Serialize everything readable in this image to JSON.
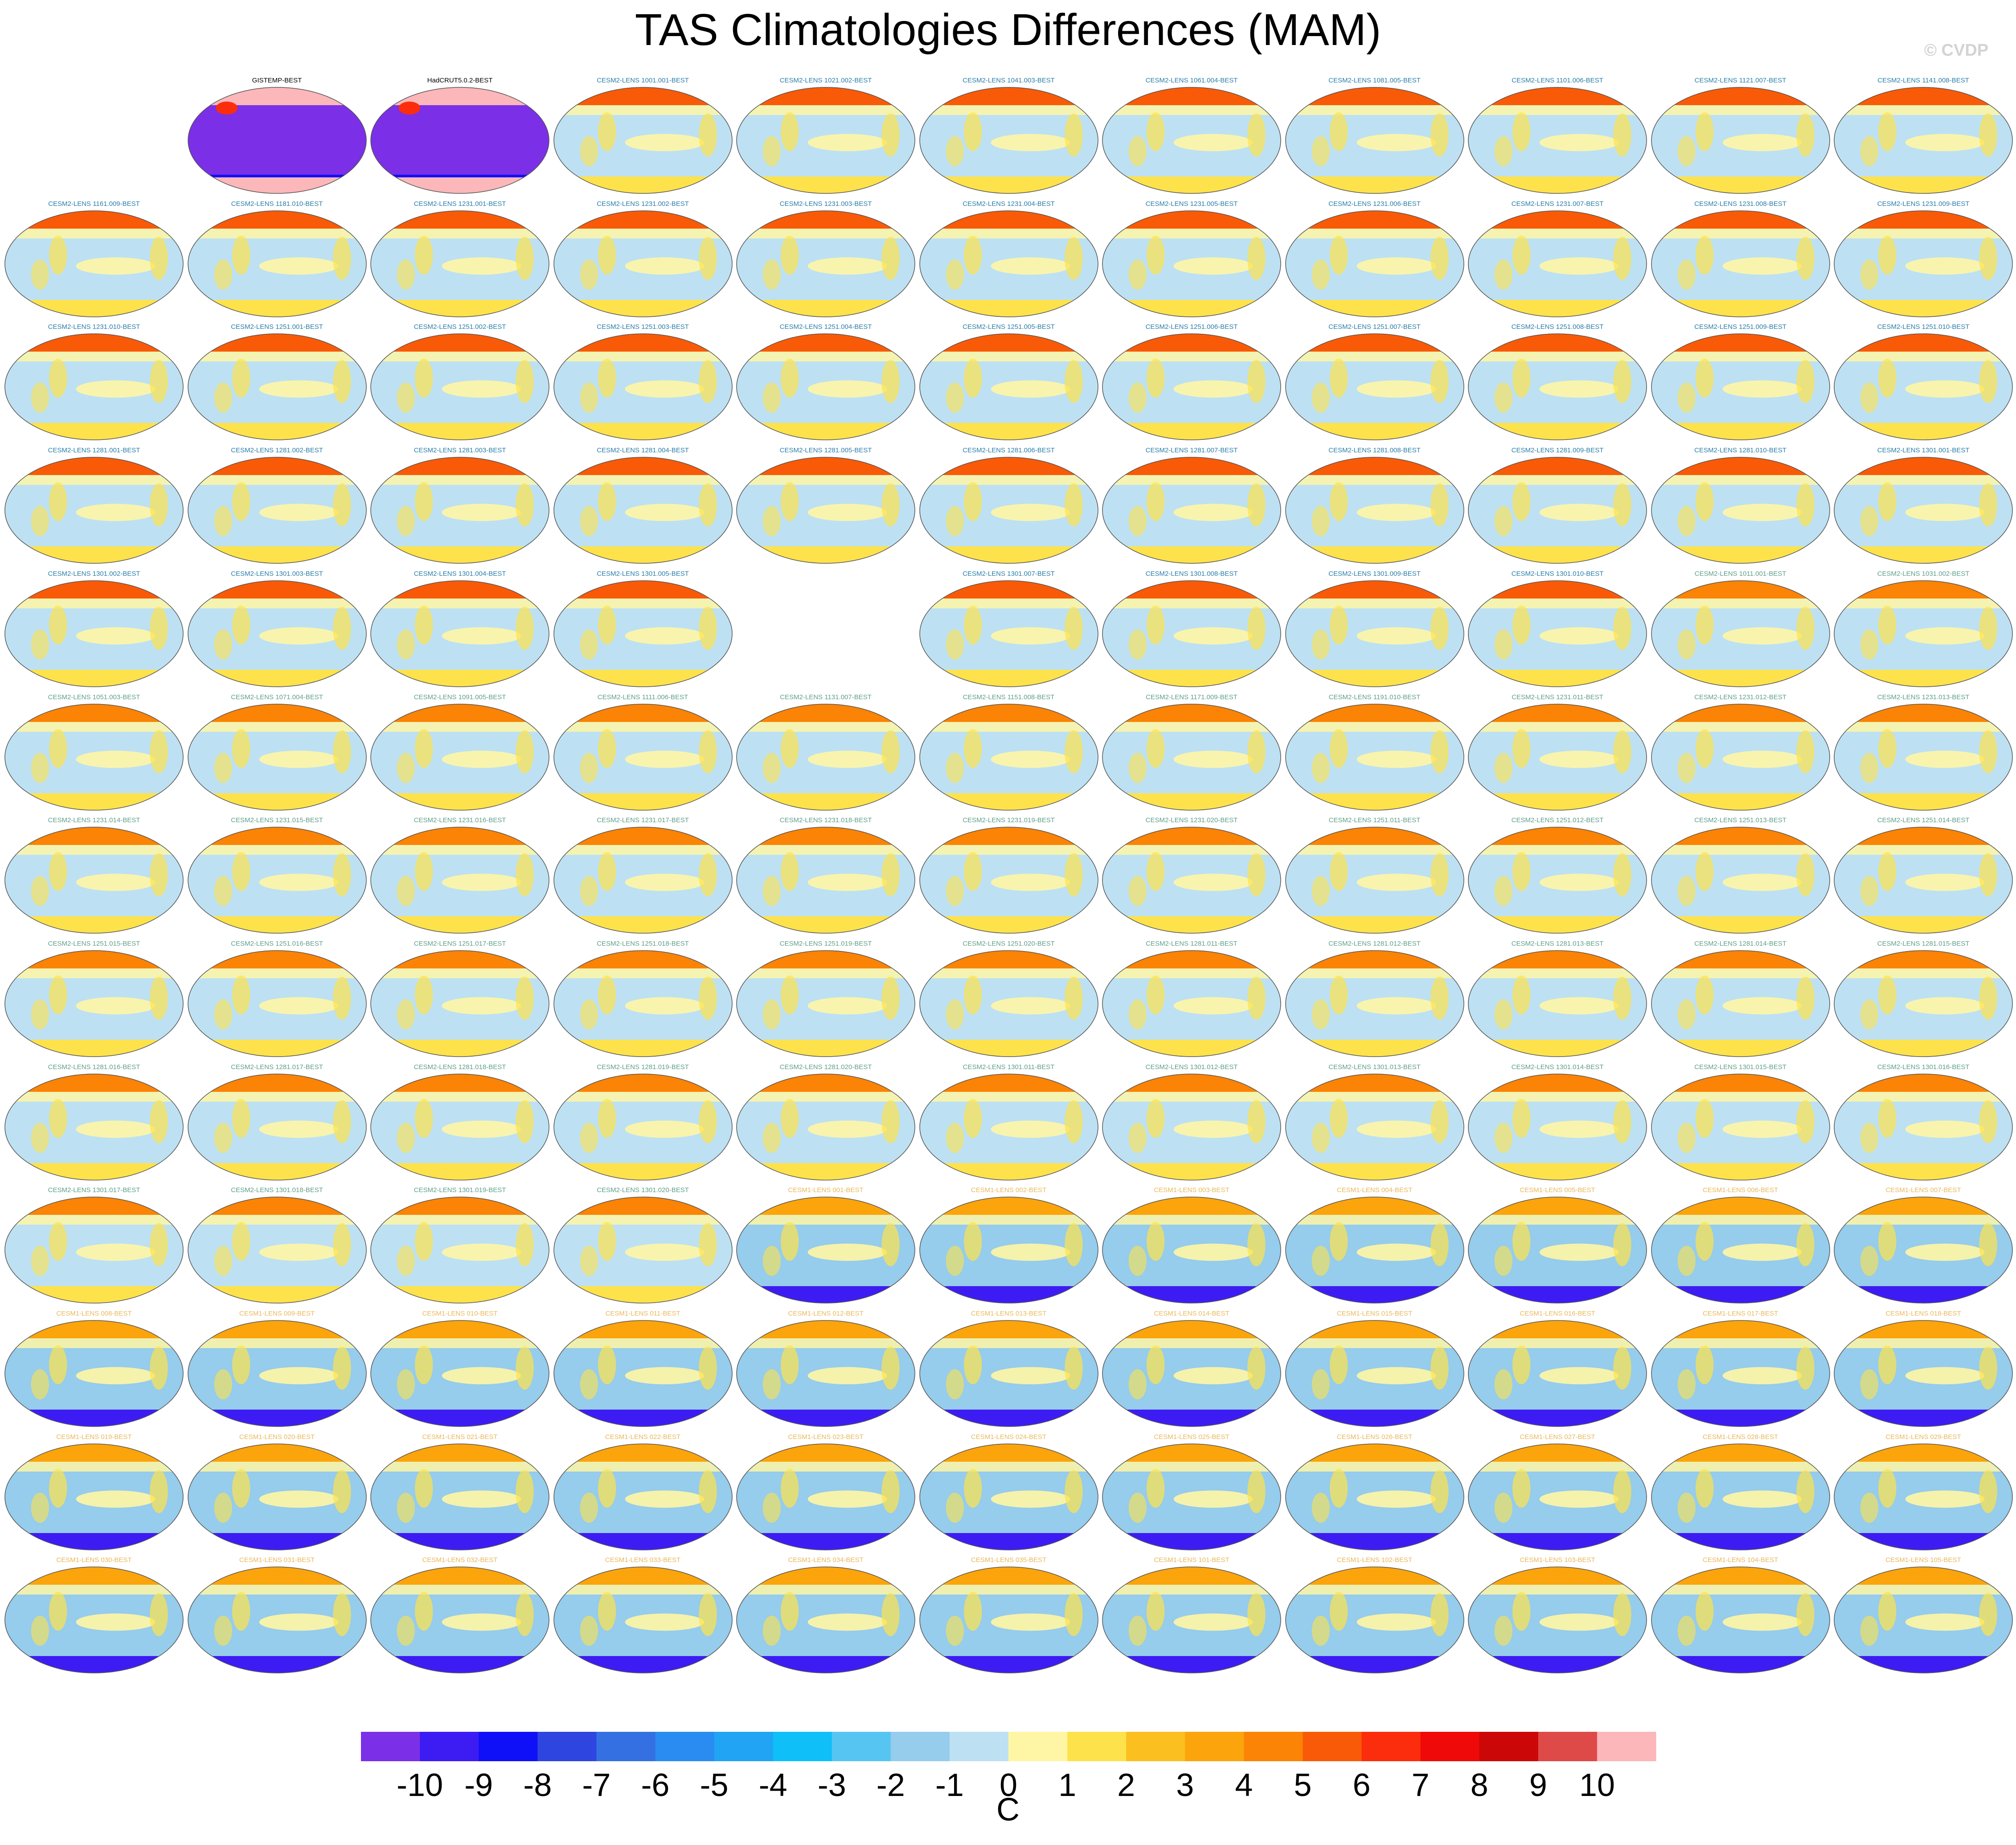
{
  "title": "TAS Climatologies Differences (MAM)",
  "watermark": "© CVDP",
  "chart_data": {
    "type": "map-grid",
    "colorbar": {
      "unit": "C",
      "ticks": [
        "-10",
        "-9",
        "-8",
        "-7",
        "-6",
        "-5",
        "-4",
        "-3",
        "-2",
        "-1",
        "0",
        "1",
        "2",
        "3",
        "4",
        "5",
        "6",
        "7",
        "8",
        "9",
        "10"
      ],
      "colors": [
        "#7b2fe6",
        "#3d1cf4",
        "#1010f8",
        "#2e45e0",
        "#3470e2",
        "#2a8bf0",
        "#20a4f3",
        "#0fbff8",
        "#57c5f1",
        "#96ccec",
        "#bde1f3",
        "#fff6a5",
        "#fde24b",
        "#fbbf1f",
        "#fba40c",
        "#fb8305",
        "#f95a08",
        "#fb2d0c",
        "#ef0909",
        "#cc0707",
        "#de4a48",
        "#fbb7b9"
      ]
    },
    "panels": [
      {
        "title": "",
        "row": 0,
        "col": 0,
        "style": "empty"
      },
      {
        "title": "GISTEMP-BEST",
        "row": 0,
        "col": 1,
        "style": "obs"
      },
      {
        "title": "HadCRUT5.0.2-BEST",
        "row": 0,
        "col": 2,
        "style": "obs"
      },
      {
        "title": "CESM2-LENS 1001.001-BEST",
        "row": 0,
        "col": 3,
        "style": "cesm2"
      },
      {
        "title": "CESM2-LENS 1021.002-BEST",
        "row": 0,
        "col": 4,
        "style": "cesm2"
      },
      {
        "title": "CESM2-LENS 1041.003-BEST",
        "row": 0,
        "col": 5,
        "style": "cesm2"
      },
      {
        "title": "CESM2-LENS 1061.004-BEST",
        "row": 0,
        "col": 6,
        "style": "cesm2"
      },
      {
        "title": "CESM2-LENS 1081.005-BEST",
        "row": 0,
        "col": 7,
        "style": "cesm2"
      },
      {
        "title": "CESM2-LENS 1101.006-BEST",
        "row": 0,
        "col": 8,
        "style": "cesm2"
      },
      {
        "title": "CESM2-LENS 1121.007-BEST",
        "row": 0,
        "col": 9,
        "style": "cesm2"
      },
      {
        "title": "CESM2-LENS 1141.008-BEST",
        "row": 0,
        "col": 10,
        "style": "cesm2"
      },
      {
        "title": "CESM2-LENS 1161.009-BEST",
        "row": 1,
        "col": 0,
        "style": "cesm2"
      },
      {
        "title": "CESM2-LENS 1181.010-BEST",
        "row": 1,
        "col": 1,
        "style": "cesm2"
      },
      {
        "title": "CESM2-LENS 1231.001-BEST",
        "row": 1,
        "col": 2,
        "style": "cesm2"
      },
      {
        "title": "CESM2-LENS 1231.002-BEST",
        "row": 1,
        "col": 3,
        "style": "cesm2"
      },
      {
        "title": "CESM2-LENS 1231.003-BEST",
        "row": 1,
        "col": 4,
        "style": "cesm2"
      },
      {
        "title": "CESM2-LENS 1231.004-BEST",
        "row": 1,
        "col": 5,
        "style": "cesm2"
      },
      {
        "title": "CESM2-LENS 1231.005-BEST",
        "row": 1,
        "col": 6,
        "style": "cesm2"
      },
      {
        "title": "CESM2-LENS 1231.006-BEST",
        "row": 1,
        "col": 7,
        "style": "cesm2"
      },
      {
        "title": "CESM2-LENS 1231.007-BEST",
        "row": 1,
        "col": 8,
        "style": "cesm2"
      },
      {
        "title": "CESM2-LENS 1231.008-BEST",
        "row": 1,
        "col": 9,
        "style": "cesm2"
      },
      {
        "title": "CESM2-LENS 1231.009-BEST",
        "row": 1,
        "col": 10,
        "style": "cesm2"
      },
      {
        "title": "CESM2-LENS 1231.010-BEST",
        "row": 2,
        "col": 0,
        "style": "cesm2"
      },
      {
        "title": "CESM2-LENS 1251.001-BEST",
        "row": 2,
        "col": 1,
        "style": "cesm2"
      },
      {
        "title": "CESM2-LENS 1251.002-BEST",
        "row": 2,
        "col": 2,
        "style": "cesm2"
      },
      {
        "title": "CESM2-LENS 1251.003-BEST",
        "row": 2,
        "col": 3,
        "style": "cesm2"
      },
      {
        "title": "CESM2-LENS 1251.004-BEST",
        "row": 2,
        "col": 4,
        "style": "cesm2"
      },
      {
        "title": "CESM2-LENS 1251.005-BEST",
        "row": 2,
        "col": 5,
        "style": "cesm2"
      },
      {
        "title": "CESM2-LENS 1251.006-BEST",
        "row": 2,
        "col": 6,
        "style": "cesm2"
      },
      {
        "title": "CESM2-LENS 1251.007-BEST",
        "row": 2,
        "col": 7,
        "style": "cesm2"
      },
      {
        "title": "CESM2-LENS 1251.008-BEST",
        "row": 2,
        "col": 8,
        "style": "cesm2"
      },
      {
        "title": "CESM2-LENS 1251.009-BEST",
        "row": 2,
        "col": 9,
        "style": "cesm2"
      },
      {
        "title": "CESM2-LENS 1251.010-BEST",
        "row": 2,
        "col": 10,
        "style": "cesm2"
      },
      {
        "title": "CESM2-LENS 1281.001-BEST",
        "row": 3,
        "col": 0,
        "style": "cesm2"
      },
      {
        "title": "CESM2-LENS 1281.002-BEST",
        "row": 3,
        "col": 1,
        "style": "cesm2"
      },
      {
        "title": "CESM2-LENS 1281.003-BEST",
        "row": 3,
        "col": 2,
        "style": "cesm2"
      },
      {
        "title": "CESM2-LENS 1281.004-BEST",
        "row": 3,
        "col": 3,
        "style": "cesm2"
      },
      {
        "title": "CESM2-LENS 1281.005-BEST",
        "row": 3,
        "col": 4,
        "style": "cesm2"
      },
      {
        "title": "CESM2-LENS 1281.006-BEST",
        "row": 3,
        "col": 5,
        "style": "cesm2"
      },
      {
        "title": "CESM2-LENS 1281.007-BEST",
        "row": 3,
        "col": 6,
        "style": "cesm2"
      },
      {
        "title": "CESM2-LENS 1281.008-BEST",
        "row": 3,
        "col": 7,
        "style": "cesm2"
      },
      {
        "title": "CESM2-LENS 1281.009-BEST",
        "row": 3,
        "col": 8,
        "style": "cesm2"
      },
      {
        "title": "CESM2-LENS 1281.010-BEST",
        "row": 3,
        "col": 9,
        "style": "cesm2"
      },
      {
        "title": "CESM2-LENS 1301.001-BEST",
        "row": 3,
        "col": 10,
        "style": "cesm2"
      },
      {
        "title": "CESM2-LENS 1301.002-BEST",
        "row": 4,
        "col": 0,
        "style": "cesm2"
      },
      {
        "title": "CESM2-LENS 1301.003-BEST",
        "row": 4,
        "col": 1,
        "style": "cesm2"
      },
      {
        "title": "CESM2-LENS 1301.004-BEST",
        "row": 4,
        "col": 2,
        "style": "cesm2"
      },
      {
        "title": "CESM2-LENS 1301.005-BEST",
        "row": 4,
        "col": 3,
        "style": "cesm2"
      },
      {
        "title": "",
        "row": 4,
        "col": 4,
        "style": "empty"
      },
      {
        "title": "CESM2-LENS 1301.007-BEST",
        "row": 4,
        "col": 5,
        "style": "cesm2"
      },
      {
        "title": "CESM2-LENS 1301.008-BEST",
        "row": 4,
        "col": 6,
        "style": "cesm2"
      },
      {
        "title": "CESM2-LENS 1301.009-BEST",
        "row": 4,
        "col": 7,
        "style": "cesm2"
      },
      {
        "title": "CESM2-LENS 1301.010-BEST",
        "row": 4,
        "col": 8,
        "style": "cesm2"
      },
      {
        "title": "CESM2-LENS 1011.001-BEST",
        "row": 4,
        "col": 9,
        "style": "cesm2b"
      },
      {
        "title": "CESM2-LENS 1031.002-BEST",
        "row": 4,
        "col": 10,
        "style": "cesm2b"
      },
      {
        "title": "CESM2-LENS 1051.003-BEST",
        "row": 5,
        "col": 0,
        "style": "cesm2b"
      },
      {
        "title": "CESM2-LENS 1071.004-BEST",
        "row": 5,
        "col": 1,
        "style": "cesm2b"
      },
      {
        "title": "CESM2-LENS 1091.005-BEST",
        "row": 5,
        "col": 2,
        "style": "cesm2b"
      },
      {
        "title": "CESM2-LENS 1111.006-BEST",
        "row": 5,
        "col": 3,
        "style": "cesm2b"
      },
      {
        "title": "CESM2-LENS 1131.007-BEST",
        "row": 5,
        "col": 4,
        "style": "cesm2b"
      },
      {
        "title": "CESM2-LENS 1151.008-BEST",
        "row": 5,
        "col": 5,
        "style": "cesm2b"
      },
      {
        "title": "CESM2-LENS 1171.009-BEST",
        "row": 5,
        "col": 6,
        "style": "cesm2b"
      },
      {
        "title": "CESM2-LENS 1191.010-BEST",
        "row": 5,
        "col": 7,
        "style": "cesm2b"
      },
      {
        "title": "CESM2-LENS 1231.011-BEST",
        "row": 5,
        "col": 8,
        "style": "cesm2b"
      },
      {
        "title": "CESM2-LENS 1231.012-BEST",
        "row": 5,
        "col": 9,
        "style": "cesm2b"
      },
      {
        "title": "CESM2-LENS 1231.013-BEST",
        "row": 5,
        "col": 10,
        "style": "cesm2b"
      },
      {
        "title": "CESM2-LENS 1231.014-BEST",
        "row": 6,
        "col": 0,
        "style": "cesm2b"
      },
      {
        "title": "CESM2-LENS 1231.015-BEST",
        "row": 6,
        "col": 1,
        "style": "cesm2b"
      },
      {
        "title": "CESM2-LENS 1231.016-BEST",
        "row": 6,
        "col": 2,
        "style": "cesm2b"
      },
      {
        "title": "CESM2-LENS 1231.017-BEST",
        "row": 6,
        "col": 3,
        "style": "cesm2b"
      },
      {
        "title": "CESM2-LENS 1231.018-BEST",
        "row": 6,
        "col": 4,
        "style": "cesm2b"
      },
      {
        "title": "CESM2-LENS 1231.019-BEST",
        "row": 6,
        "col": 5,
        "style": "cesm2b"
      },
      {
        "title": "CESM2-LENS 1231.020-BEST",
        "row": 6,
        "col": 6,
        "style": "cesm2b"
      },
      {
        "title": "CESM2-LENS 1251.011-BEST",
        "row": 6,
        "col": 7,
        "style": "cesm2b"
      },
      {
        "title": "CESM2-LENS 1251.012-BEST",
        "row": 6,
        "col": 8,
        "style": "cesm2b"
      },
      {
        "title": "CESM2-LENS 1251.013-BEST",
        "row": 6,
        "col": 9,
        "style": "cesm2b"
      },
      {
        "title": "CESM2-LENS 1251.014-BEST",
        "row": 6,
        "col": 10,
        "style": "cesm2b"
      },
      {
        "title": "CESM2-LENS 1251.015-BEST",
        "row": 7,
        "col": 0,
        "style": "cesm2b"
      },
      {
        "title": "CESM2-LENS 1251.016-BEST",
        "row": 7,
        "col": 1,
        "style": "cesm2b"
      },
      {
        "title": "CESM2-LENS 1251.017-BEST",
        "row": 7,
        "col": 2,
        "style": "cesm2b"
      },
      {
        "title": "CESM2-LENS 1251.018-BEST",
        "row": 7,
        "col": 3,
        "style": "cesm2b"
      },
      {
        "title": "CESM2-LENS 1251.019-BEST",
        "row": 7,
        "col": 4,
        "style": "cesm2b"
      },
      {
        "title": "CESM2-LENS 1251.020-BEST",
        "row": 7,
        "col": 5,
        "style": "cesm2b"
      },
      {
        "title": "CESM2-LENS 1281.011-BEST",
        "row": 7,
        "col": 6,
        "style": "cesm2b"
      },
      {
        "title": "CESM2-LENS 1281.012-BEST",
        "row": 7,
        "col": 7,
        "style": "cesm2b"
      },
      {
        "title": "CESM2-LENS 1281.013-BEST",
        "row": 7,
        "col": 8,
        "style": "cesm2b"
      },
      {
        "title": "CESM2-LENS 1281.014-BEST",
        "row": 7,
        "col": 9,
        "style": "cesm2b"
      },
      {
        "title": "CESM2-LENS 1281.015-BEST",
        "row": 7,
        "col": 10,
        "style": "cesm2b"
      },
      {
        "title": "CESM2-LENS 1281.016-BEST",
        "row": 8,
        "col": 0,
        "style": "cesm2b"
      },
      {
        "title": "CESM2-LENS 1281.017-BEST",
        "row": 8,
        "col": 1,
        "style": "cesm2b"
      },
      {
        "title": "CESM2-LENS 1281.018-BEST",
        "row": 8,
        "col": 2,
        "style": "cesm2b"
      },
      {
        "title": "CESM2-LENS 1281.019-BEST",
        "row": 8,
        "col": 3,
        "style": "cesm2b"
      },
      {
        "title": "CESM2-LENS 1281.020-BEST",
        "row": 8,
        "col": 4,
        "style": "cesm2b"
      },
      {
        "title": "CESM2-LENS 1301.011-BEST",
        "row": 8,
        "col": 5,
        "style": "cesm2b"
      },
      {
        "title": "CESM2-LENS 1301.012-BEST",
        "row": 8,
        "col": 6,
        "style": "cesm2b"
      },
      {
        "title": "CESM2-LENS 1301.013-BEST",
        "row": 8,
        "col": 7,
        "style": "cesm2b"
      },
      {
        "title": "CESM2-LENS 1301.014-BEST",
        "row": 8,
        "col": 8,
        "style": "cesm2b"
      },
      {
        "title": "CESM2-LENS 1301.015-BEST",
        "row": 8,
        "col": 9,
        "style": "cesm2b"
      },
      {
        "title": "CESM2-LENS 1301.016-BEST",
        "row": 8,
        "col": 10,
        "style": "cesm2b"
      },
      {
        "title": "CESM2-LENS 1301.017-BEST",
        "row": 9,
        "col": 0,
        "style": "cesm2b"
      },
      {
        "title": "CESM2-LENS 1301.018-BEST",
        "row": 9,
        "col": 1,
        "style": "cesm2b"
      },
      {
        "title": "CESM2-LENS 1301.019-BEST",
        "row": 9,
        "col": 2,
        "style": "cesm2b"
      },
      {
        "title": "CESM2-LENS 1301.020-BEST",
        "row": 9,
        "col": 3,
        "style": "cesm2b"
      },
      {
        "title": "CESM1-LENS 001-BEST",
        "row": 9,
        "col": 4,
        "style": "cesm1"
      },
      {
        "title": "CESM1-LENS 002-BEST",
        "row": 9,
        "col": 5,
        "style": "cesm1"
      },
      {
        "title": "CESM1-LENS 003-BEST",
        "row": 9,
        "col": 6,
        "style": "cesm1"
      },
      {
        "title": "CESM1-LENS 004-BEST",
        "row": 9,
        "col": 7,
        "style": "cesm1"
      },
      {
        "title": "CESM1-LENS 005-BEST",
        "row": 9,
        "col": 8,
        "style": "cesm1"
      },
      {
        "title": "CESM1-LENS 006-BEST",
        "row": 9,
        "col": 9,
        "style": "cesm1"
      },
      {
        "title": "CESM1-LENS 007-BEST",
        "row": 9,
        "col": 10,
        "style": "cesm1"
      },
      {
        "title": "CESM1-LENS 008-BEST",
        "row": 10,
        "col": 0,
        "style": "cesm1"
      },
      {
        "title": "CESM1-LENS 009-BEST",
        "row": 10,
        "col": 1,
        "style": "cesm1"
      },
      {
        "title": "CESM1-LENS 010-BEST",
        "row": 10,
        "col": 2,
        "style": "cesm1"
      },
      {
        "title": "CESM1-LENS 011-BEST",
        "row": 10,
        "col": 3,
        "style": "cesm1"
      },
      {
        "title": "CESM1-LENS 012-BEST",
        "row": 10,
        "col": 4,
        "style": "cesm1"
      },
      {
        "title": "CESM1-LENS 013-BEST",
        "row": 10,
        "col": 5,
        "style": "cesm1"
      },
      {
        "title": "CESM1-LENS 014-BEST",
        "row": 10,
        "col": 6,
        "style": "cesm1"
      },
      {
        "title": "CESM1-LENS 015-BEST",
        "row": 10,
        "col": 7,
        "style": "cesm1"
      },
      {
        "title": "CESM1-LENS 016-BEST",
        "row": 10,
        "col": 8,
        "style": "cesm1"
      },
      {
        "title": "CESM1-LENS 017-BEST",
        "row": 10,
        "col": 9,
        "style": "cesm1"
      },
      {
        "title": "CESM1-LENS 018-BEST",
        "row": 10,
        "col": 10,
        "style": "cesm1"
      },
      {
        "title": "CESM1-LENS 019-BEST",
        "row": 11,
        "col": 0,
        "style": "cesm1"
      },
      {
        "title": "CESM1-LENS 020-BEST",
        "row": 11,
        "col": 1,
        "style": "cesm1"
      },
      {
        "title": "CESM1-LENS 021-BEST",
        "row": 11,
        "col": 2,
        "style": "cesm1"
      },
      {
        "title": "CESM1-LENS 022-BEST",
        "row": 11,
        "col": 3,
        "style": "cesm1"
      },
      {
        "title": "CESM1-LENS 023-BEST",
        "row": 11,
        "col": 4,
        "style": "cesm1"
      },
      {
        "title": "CESM1-LENS 024-BEST",
        "row": 11,
        "col": 5,
        "style": "cesm1"
      },
      {
        "title": "CESM1-LENS 025-BEST",
        "row": 11,
        "col": 6,
        "style": "cesm1"
      },
      {
        "title": "CESM1-LENS 026-BEST",
        "row": 11,
        "col": 7,
        "style": "cesm1"
      },
      {
        "title": "CESM1-LENS 027-BEST",
        "row": 11,
        "col": 8,
        "style": "cesm1"
      },
      {
        "title": "CESM1-LENS 028-BEST",
        "row": 11,
        "col": 9,
        "style": "cesm1"
      },
      {
        "title": "CESM1-LENS 029-BEST",
        "row": 11,
        "col": 10,
        "style": "cesm1"
      },
      {
        "title": "CESM1-LENS 030-BEST",
        "row": 12,
        "col": 0,
        "style": "cesm1"
      },
      {
        "title": "CESM1-LENS 031-BEST",
        "row": 12,
        "col": 1,
        "style": "cesm1"
      },
      {
        "title": "CESM1-LENS 032-BEST",
        "row": 12,
        "col": 2,
        "style": "cesm1"
      },
      {
        "title": "CESM1-LENS 033-BEST",
        "row": 12,
        "col": 3,
        "style": "cesm1"
      },
      {
        "title": "CESM1-LENS 034-BEST",
        "row": 12,
        "col": 4,
        "style": "cesm1"
      },
      {
        "title": "CESM1-LENS 035-BEST",
        "row": 12,
        "col": 5,
        "style": "cesm1"
      },
      {
        "title": "CESM1-LENS 101-BEST",
        "row": 12,
        "col": 6,
        "style": "cesm1"
      },
      {
        "title": "CESM1-LENS 102-BEST",
        "row": 12,
        "col": 7,
        "style": "cesm1"
      },
      {
        "title": "CESM1-LENS 103-BEST",
        "row": 12,
        "col": 8,
        "style": "cesm1"
      },
      {
        "title": "CESM1-LENS 104-BEST",
        "row": 12,
        "col": 9,
        "style": "cesm1"
      },
      {
        "title": "CESM1-LENS 105-BEST",
        "row": 12,
        "col": 10,
        "style": "cesm1"
      }
    ],
    "panel_styles": {
      "obs": {
        "title_color": "#000000",
        "ocean": "#7b2fe6",
        "north": "#fbb7b9",
        "south": "#fbb7b9",
        "mid": "#7b2fe6",
        "rim": "#3470e2"
      },
      "cesm2": {
        "title_color": "#2a7ea8",
        "ocean": "#bde1f3",
        "north": "#f95a08",
        "south": "#fde24b",
        "mid": "#fff6a5",
        "rim": "#96ccec"
      },
      "cesm2b": {
        "title_color": "#5f9f8a",
        "ocean": "#bde1f3",
        "north": "#fb8305",
        "south": "#fde24b",
        "mid": "#fff6a5",
        "rim": "#96ccec"
      },
      "cesm1": {
        "title_color": "#e9b85c",
        "ocean": "#96ccec",
        "north": "#fba40c",
        "south": "#3d1cf4",
        "mid": "#fff6a5",
        "rim": "#57c5f1"
      }
    }
  }
}
